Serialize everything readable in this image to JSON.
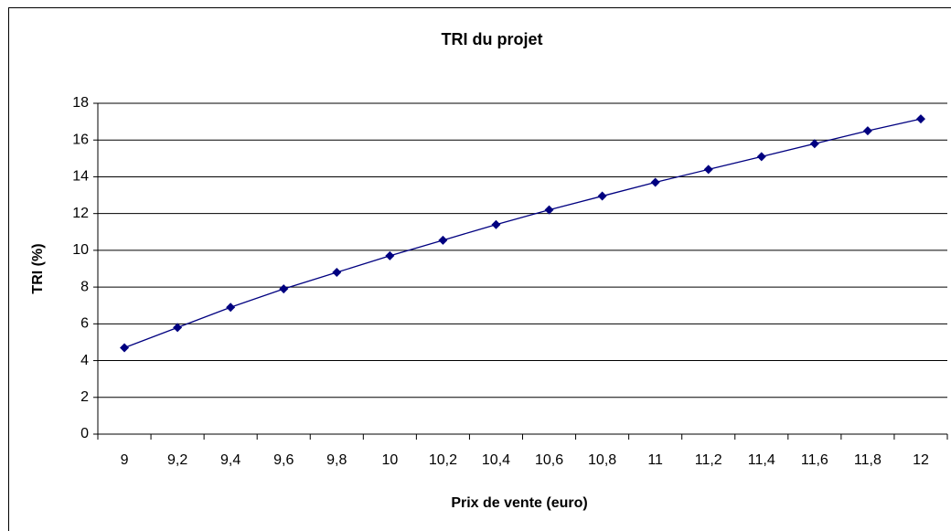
{
  "chart_data": {
    "type": "line",
    "title": "TRI du projet",
    "x_label": "Prix de vente (euro)",
    "y_label": "TRI (%)",
    "categories": [
      "9",
      "9,2",
      "9,4",
      "9,6",
      "9,8",
      "10",
      "10,2",
      "10,4",
      "10,6",
      "10,8",
      "11",
      "11,2",
      "11,4",
      "11,6",
      "11,8",
      "12"
    ],
    "series": [
      {
        "color": "#000080",
        "values": [
          4.7,
          5.8,
          6.9,
          7.9,
          8.8,
          9.7,
          10.55,
          11.4,
          12.2,
          12.95,
          13.7,
          14.4,
          15.1,
          15.8,
          16.5,
          17.15
        ]
      }
    ],
    "ylim": [
      0,
      18
    ],
    "yticks": [
      0,
      2,
      4,
      6,
      8,
      10,
      12,
      14,
      16,
      18
    ],
    "grid": true
  }
}
